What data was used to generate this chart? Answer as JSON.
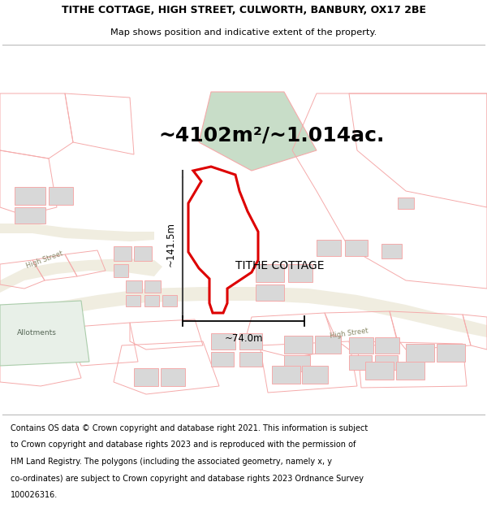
{
  "title_line1": "TITHE COTTAGE, HIGH STREET, CULWORTH, BANBURY, OX17 2BE",
  "title_line2": "Map shows position and indicative extent of the property.",
  "area_text": "~4102m²/~1.014ac.",
  "property_label": "TITHE COTTAGE",
  "dim1_label": "~141.5m",
  "dim2_label": "~74.0m",
  "footer_lines": [
    "Contains OS data © Crown copyright and database right 2021. This information is subject",
    "to Crown copyright and database rights 2023 and is reproduced with the permission of",
    "HM Land Registry. The polygons (including the associated geometry, namely x, y",
    "co-ordinates) are subject to Crown copyright and database rights 2023 Ordnance Survey",
    "100026316."
  ],
  "map_bg": "#ffffff",
  "property_fill": "#dce8dc",
  "property_edge": "#dd0000",
  "other_edge": "#f5aaaa",
  "bldg_fill": "#d8d8d8",
  "road_fill": "#eeebe0",
  "green_fill": "#c8ddc8",
  "title_fontsize": 9.0,
  "subtitle_fontsize": 8.2,
  "area_fontsize": 18,
  "label_fontsize": 10,
  "dim_fontsize": 8.5,
  "footer_fontsize": 7.0,
  "road_label_color": "#888866",
  "road_label_size": 6.0
}
